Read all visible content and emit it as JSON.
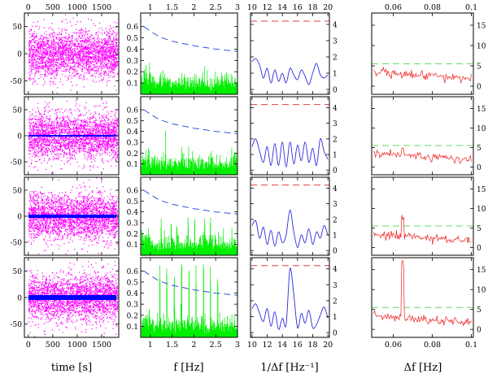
{
  "figure": {
    "columns": [
      {
        "id": "time",
        "xlabel": "time [s]"
      },
      {
        "id": "freq",
        "xlabel": "f [Hz]"
      },
      {
        "id": "inv",
        "xlabel": "1/Δf [Hz⁻¹]"
      },
      {
        "id": "df",
        "xlabel": "Δf [Hz]"
      }
    ]
  },
  "chart_data": [
    {
      "type": "scatter",
      "column": "time",
      "xlim": [
        -80,
        1850
      ],
      "ylim": [
        -75,
        75
      ],
      "x_ticks": [
        "0",
        "500",
        "1000",
        "1500"
      ],
      "x_tick_values": [
        0,
        500,
        1000,
        1500
      ],
      "y_ticks": [
        "50",
        "0",
        "-50"
      ],
      "y_tick_values": [
        50,
        0,
        -50
      ],
      "noise_color": "#ff00ff",
      "line_color": "#0000ff",
      "rows": [
        {
          "noise_sigma": 22,
          "line_amplitude": 0
        },
        {
          "noise_sigma": 22,
          "line_amplitude": 2
        },
        {
          "noise_sigma": 22,
          "line_amplitude": 4
        },
        {
          "noise_sigma": 22,
          "line_amplitude": 6
        }
      ]
    },
    {
      "type": "line",
      "column": "freq",
      "xlim": [
        0.78,
        3.0
      ],
      "ylim": [
        0,
        0.72
      ],
      "x_ticks": [
        "1",
        "1.5",
        "2",
        "2.5",
        "3"
      ],
      "x_tick_values": [
        1,
        1.5,
        2,
        2.5,
        3
      ],
      "y_ticks": [
        "0.6",
        "0.5",
        "0.4",
        "0.3",
        "0.2",
        "0.1"
      ],
      "y_tick_values": [
        0.6,
        0.5,
        0.4,
        0.3,
        0.2,
        0.1
      ],
      "spectrum_color": "#00ee00",
      "threshold_color": "#3050e0",
      "threshold": {
        "x": [
          0.85,
          1.0,
          1.2,
          1.5,
          2.0,
          2.5,
          3.0
        ],
        "y": [
          0.6,
          0.56,
          0.51,
          0.47,
          0.43,
          0.4,
          0.38
        ]
      },
      "rows": [
        {
          "peak_frequencies": []
        },
        {
          "peak_frequencies": []
        },
        {
          "peak_frequencies": [
            1.25,
            1.48,
            1.61,
            1.87,
            2.02,
            2.25,
            2.38
          ]
        },
        {
          "peak_frequencies": [
            1.22,
            1.38,
            1.55,
            1.72,
            1.89,
            2.05,
            2.22,
            2.38,
            2.55
          ]
        }
      ],
      "row_peak_heights": [
        0,
        0,
        0.35,
        0.68
      ]
    },
    {
      "type": "line",
      "column": "inv",
      "xlim": [
        9.8,
        20.2
      ],
      "ylim": [
        -0.3,
        4.7
      ],
      "x_ticks": [
        "10",
        "12",
        "14",
        "16",
        "18",
        "20"
      ],
      "x_tick_values": [
        10,
        12,
        14,
        16,
        18,
        20
      ],
      "y_ticks": [
        "4",
        "3",
        "2",
        "1",
        "0"
      ],
      "y_tick_values": [
        4,
        3,
        2,
        1,
        0
      ],
      "line_color": "#2a2ae0",
      "threshold_color": "#e04040",
      "threshold": 4.2,
      "rows": [
        {
          "x": [
            10,
            10.5,
            11,
            11.5,
            12,
            12.5,
            13,
            13.5,
            14,
            14.5,
            15,
            15.5,
            16,
            16.5,
            17,
            17.5,
            18,
            18.5,
            19,
            19.5,
            20
          ],
          "y": [
            1.7,
            1.9,
            1.5,
            0.7,
            1.3,
            0.4,
            1.2,
            0.5,
            1.0,
            0.4,
            1.3,
            0.9,
            0.6,
            1.2,
            0.8,
            0.3,
            1.0,
            1.6,
            0.9,
            0.7,
            0.9
          ]
        },
        {
          "x": [
            10,
            10.5,
            11,
            11.5,
            12,
            12.5,
            13,
            13.5,
            14,
            14.5,
            15,
            15.5,
            16,
            16.5,
            17,
            17.5,
            18,
            18.5,
            19,
            19.5,
            20
          ],
          "y": [
            1.5,
            2.0,
            1.2,
            0.5,
            1.5,
            0.3,
            1.7,
            0.3,
            1.8,
            0.2,
            1.8,
            0.4,
            1.6,
            0.6,
            1.8,
            0.5,
            1.4,
            0.3,
            2.0,
            1.2,
            0.7
          ]
        },
        {
          "x": [
            10,
            10.5,
            11,
            11.5,
            12,
            12.5,
            13,
            13.5,
            14,
            14.5,
            15,
            15.5,
            16,
            16.5,
            17,
            17.5,
            18,
            18.5,
            19,
            19.5,
            20
          ],
          "y": [
            1.6,
            1.9,
            0.8,
            1.5,
            0.4,
            1.3,
            0.3,
            1.2,
            0.5,
            1.0,
            2.6,
            1.2,
            0.2,
            1.0,
            0.5,
            1.4,
            0.4,
            1.2,
            0.8,
            1.6,
            1.0
          ]
        },
        {
          "x": [
            10,
            10.5,
            11,
            11.5,
            12,
            12.5,
            13,
            13.5,
            14,
            14.5,
            15,
            15.5,
            16,
            16.5,
            17,
            17.5,
            18,
            18.5,
            19,
            19.5,
            20
          ],
          "y": [
            1.5,
            1.8,
            1.2,
            0.7,
            1.5,
            0.4,
            1.3,
            0.2,
            0.9,
            0.5,
            4.0,
            2.4,
            0.3,
            1.2,
            0.6,
            1.4,
            0.3,
            0.5,
            1.1,
            1.6,
            0.9
          ]
        }
      ]
    },
    {
      "type": "line",
      "column": "df",
      "xlim": [
        0.049,
        0.101
      ],
      "ylim": [
        -2,
        18
      ],
      "x_ticks": [
        "0.06",
        "0.08",
        "0.1"
      ],
      "x_tick_values": [
        0.06,
        0.08,
        0.1
      ],
      "y_ticks": [
        "15",
        "10",
        "5",
        "0"
      ],
      "y_tick_values": [
        15,
        10,
        5,
        0
      ],
      "line_color": "#ee2020",
      "threshold_color": "#60dd60",
      "threshold": 5.5,
      "rows": [
        {
          "baseline": 3.5,
          "slope": -1.8,
          "peak_x": 0.065,
          "peak_height": 0
        },
        {
          "baseline": 3.5,
          "slope": -1.8,
          "peak_x": 0.065,
          "peak_height": 1.5
        },
        {
          "baseline": 3.5,
          "slope": -1.8,
          "peak_x": 0.065,
          "peak_height": 4.5
        },
        {
          "baseline": 3.5,
          "slope": -1.8,
          "peak_x": 0.065,
          "peak_height": 14
        }
      ]
    }
  ]
}
